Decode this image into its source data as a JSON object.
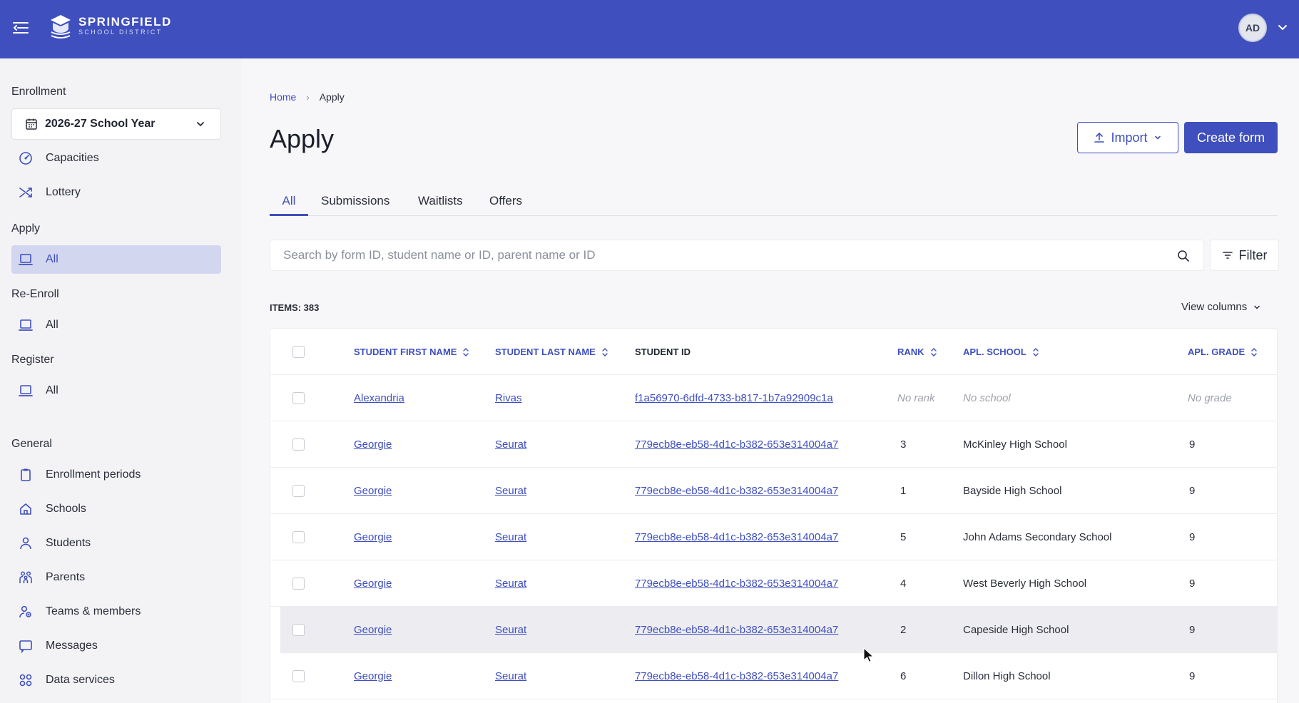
{
  "brand": {
    "title": "SPRINGFIELD",
    "subtitle": "SCHOOL DISTRICT"
  },
  "user": {
    "initials": "AD"
  },
  "sidebar": {
    "sections": {
      "enrollment": "Enrollment",
      "apply": "Apply",
      "reenroll": "Re-Enroll",
      "register": "Register",
      "general": "General"
    },
    "school_year": "2026-27 School Year",
    "items": {
      "capacities": "Capacities",
      "lottery": "Lottery",
      "apply_all": "All",
      "reenroll_all": "All",
      "register_all": "All",
      "enrollment_periods": "Enrollment periods",
      "schools": "Schools",
      "students": "Students",
      "parents": "Parents",
      "teams": "Teams & members",
      "messages": "Messages",
      "data_services": "Data services"
    }
  },
  "breadcrumb": {
    "home": "Home",
    "separator": "›",
    "current": "Apply"
  },
  "page": {
    "title": "Apply",
    "import_label": "Import",
    "create_label": "Create form"
  },
  "tabs": [
    "All",
    "Submissions",
    "Waitlists",
    "Offers"
  ],
  "search": {
    "placeholder": "Search by form ID, student name or ID, parent name or ID",
    "value": ""
  },
  "filter_label": "Filter",
  "items_count": "ITEMS: 383",
  "view_columns": "View columns",
  "table": {
    "headers": {
      "first": "STUDENT FIRST NAME",
      "last": "STUDENT LAST NAME",
      "id": "STUDENT ID",
      "rank": "RANK",
      "school": "APL. SCHOOL",
      "grade": "APL. GRADE"
    },
    "rows": [
      {
        "first": "Alexandria",
        "last": "Rivas",
        "id": "f1a56970-6dfd-4733-b817-1b7a92909c1a",
        "rank": "No rank",
        "school": "No school",
        "grade": "No grade"
      },
      {
        "first": "Georgie",
        "last": "Seurat",
        "id": "779ecb8e-eb58-4d1c-b382-653e314004a7",
        "rank": "3",
        "school": "McKinley High School",
        "grade": "9"
      },
      {
        "first": "Georgie",
        "last": "Seurat",
        "id": "779ecb8e-eb58-4d1c-b382-653e314004a7",
        "rank": "1",
        "school": "Bayside High School",
        "grade": "9"
      },
      {
        "first": "Georgie",
        "last": "Seurat",
        "id": "779ecb8e-eb58-4d1c-b382-653e314004a7",
        "rank": "5",
        "school": "John Adams Secondary School",
        "grade": "9"
      },
      {
        "first": "Georgie",
        "last": "Seurat",
        "id": "779ecb8e-eb58-4d1c-b382-653e314004a7",
        "rank": "4",
        "school": "West Beverly High School",
        "grade": "9"
      },
      {
        "first": "Georgie",
        "last": "Seurat",
        "id": "779ecb8e-eb58-4d1c-b382-653e314004a7",
        "rank": "2",
        "school": "Capeside High School",
        "grade": "9"
      },
      {
        "first": "Georgie",
        "last": "Seurat",
        "id": "779ecb8e-eb58-4d1c-b382-653e314004a7",
        "rank": "6",
        "school": "Dillon High School",
        "grade": "9"
      }
    ]
  },
  "colors": {
    "brand": "#3f4fbd",
    "active_nav": "#d3d6ef",
    "muted": "#9ea1ab"
  },
  "icons": [
    "menu-collapse-icon",
    "school-logo-icon",
    "chevron-down-icon",
    "calendar-icon",
    "gauge-icon",
    "shuffle-icon",
    "laptop-icon",
    "clipboard-icon",
    "home-icon",
    "person-icon",
    "family-icon",
    "team-icon",
    "message-icon",
    "grid-icon",
    "upload-icon",
    "search-icon",
    "filter-icon",
    "sort-icon",
    "cursor-icon"
  ]
}
